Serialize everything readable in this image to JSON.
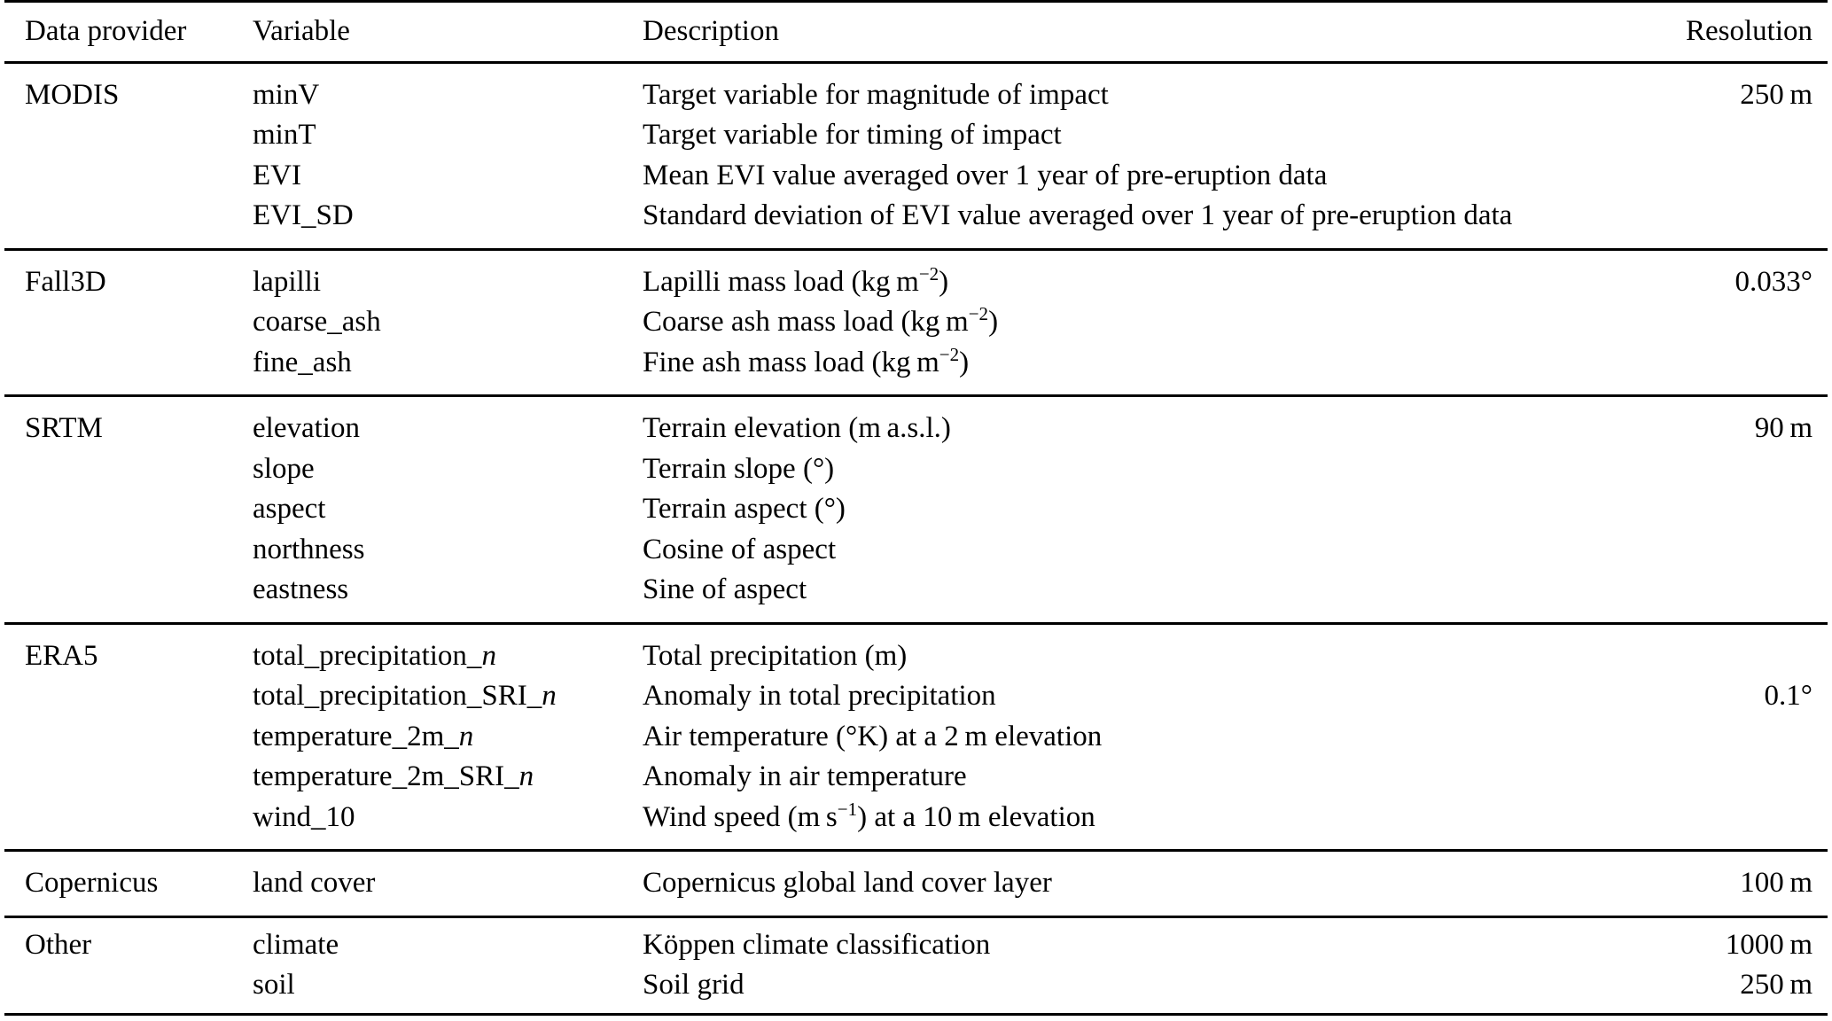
{
  "page": {
    "background": "#ffffff",
    "text_color": "#000000",
    "rule_color": "#000000"
  },
  "table": {
    "columns": [
      "Data provider",
      "Variable",
      "Description",
      "Resolution"
    ],
    "sections": [
      {
        "provider": "MODIS",
        "rows": [
          {
            "variable": [
              {
                "t": "minV"
              }
            ],
            "description": [
              {
                "t": "Target variable for magnitude of impact"
              }
            ],
            "resolution": "250 m"
          },
          {
            "variable": [
              {
                "t": "minT"
              }
            ],
            "description": [
              {
                "t": "Target variable for timing of impact"
              }
            ],
            "resolution": ""
          },
          {
            "variable": [
              {
                "t": "EVI"
              }
            ],
            "description": [
              {
                "t": "Mean EVI value averaged over 1 year of pre-eruption data"
              }
            ],
            "resolution": ""
          },
          {
            "variable": [
              {
                "t": "EVI_SD"
              }
            ],
            "description": [
              {
                "t": "Standard deviation of EVI value averaged over 1 year of pre-eruption data"
              }
            ],
            "resolution": ""
          }
        ]
      },
      {
        "provider": "Fall3D",
        "rows": [
          {
            "variable": [
              {
                "t": "lapilli"
              }
            ],
            "description": [
              {
                "t": "Lapilli mass load (kg m"
              },
              {
                "t": "−2",
                "sup": true
              },
              {
                "t": ")"
              }
            ],
            "resolution": "0.033°"
          },
          {
            "variable": [
              {
                "t": "coarse_ash"
              }
            ],
            "description": [
              {
                "t": "Coarse ash mass load (kg m"
              },
              {
                "t": "−2",
                "sup": true
              },
              {
                "t": ")"
              }
            ],
            "resolution": ""
          },
          {
            "variable": [
              {
                "t": "fine_ash"
              }
            ],
            "description": [
              {
                "t": "Fine ash mass load (kg m"
              },
              {
                "t": "−2",
                "sup": true
              },
              {
                "t": ")"
              }
            ],
            "resolution": ""
          }
        ]
      },
      {
        "provider": "SRTM",
        "rows": [
          {
            "variable": [
              {
                "t": "elevation"
              }
            ],
            "description": [
              {
                "t": "Terrain elevation (m a.s.l.)"
              }
            ],
            "resolution": "90 m"
          },
          {
            "variable": [
              {
                "t": "slope"
              }
            ],
            "description": [
              {
                "t": "Terrain slope (°)"
              }
            ],
            "resolution": ""
          },
          {
            "variable": [
              {
                "t": "aspect"
              }
            ],
            "description": [
              {
                "t": "Terrain aspect (°)"
              }
            ],
            "resolution": ""
          },
          {
            "variable": [
              {
                "t": "northness"
              }
            ],
            "description": [
              {
                "t": "Cosine of aspect"
              }
            ],
            "resolution": ""
          },
          {
            "variable": [
              {
                "t": "eastness"
              }
            ],
            "description": [
              {
                "t": "Sine of aspect"
              }
            ],
            "resolution": ""
          }
        ]
      },
      {
        "provider": "ERA5",
        "rows": [
          {
            "variable": [
              {
                "t": "total_precipitation_"
              },
              {
                "t": "n",
                "i": true
              }
            ],
            "description": [
              {
                "t": "Total precipitation (m)"
              }
            ],
            "resolution": ""
          },
          {
            "variable": [
              {
                "t": "total_precipitation_SRI_"
              },
              {
                "t": "n",
                "i": true
              }
            ],
            "description": [
              {
                "t": "Anomaly in total precipitation"
              }
            ],
            "resolution": "0.1°"
          },
          {
            "variable": [
              {
                "t": "temperature_2m_"
              },
              {
                "t": "n",
                "i": true
              }
            ],
            "description": [
              {
                "t": "Air temperature (°K) at a 2 m elevation"
              }
            ],
            "resolution": ""
          },
          {
            "variable": [
              {
                "t": "temperature_2m_SRI_"
              },
              {
                "t": "n",
                "i": true
              }
            ],
            "description": [
              {
                "t": "Anomaly in air temperature"
              }
            ],
            "resolution": ""
          },
          {
            "variable": [
              {
                "t": "wind_10"
              }
            ],
            "description": [
              {
                "t": "Wind speed (m s"
              },
              {
                "t": "−1",
                "sup": true
              },
              {
                "t": ") at a 10 m elevation"
              }
            ],
            "resolution": ""
          }
        ]
      },
      {
        "provider": "Copernicus",
        "rows": [
          {
            "variable": [
              {
                "t": "land cover"
              }
            ],
            "description": [
              {
                "t": "Copernicus global land cover layer"
              }
            ],
            "resolution": "100 m"
          }
        ]
      },
      {
        "provider": "Other",
        "rows": [
          {
            "variable": [
              {
                "t": "climate"
              }
            ],
            "description": [
              {
                "t": "Köppen climate classification"
              }
            ],
            "resolution": "1000 m"
          },
          {
            "variable": [
              {
                "t": "soil"
              }
            ],
            "description": [
              {
                "t": "Soil grid"
              }
            ],
            "resolution": "250 m"
          }
        ]
      }
    ]
  }
}
